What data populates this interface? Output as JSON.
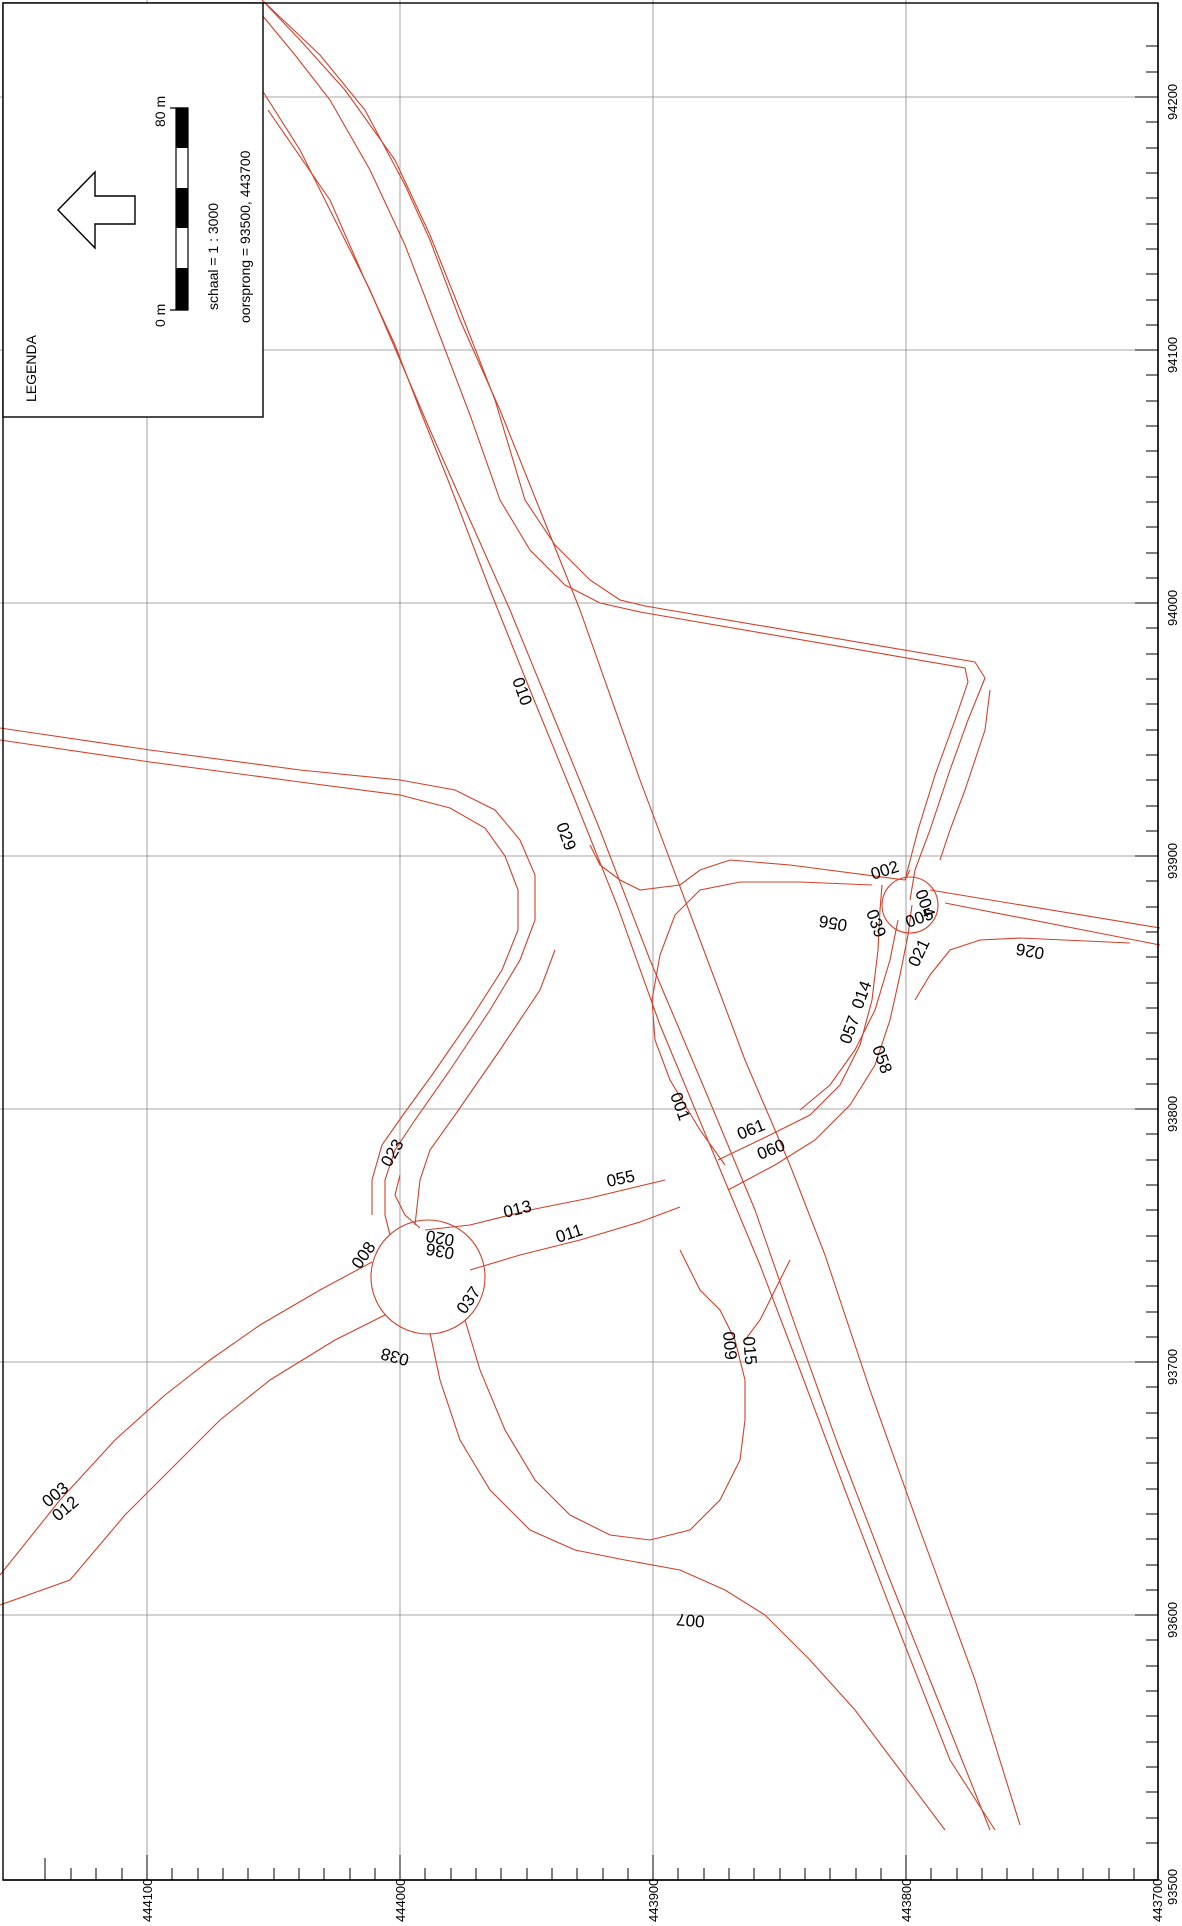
{
  "legend": {
    "title": "LEGENDA",
    "scale_start": "0 m",
    "scale_end": "80 m",
    "scale_text": "schaal = 1 : 3000",
    "origin_text": "oorsprong = 93500, 443700",
    "north_arrow_icon": "arrow-icon"
  },
  "axes": {
    "bottom_ticks": [
      "444100",
      "444000",
      "443900",
      "443800",
      "443700"
    ],
    "right_ticks": [
      "94200",
      "94100",
      "94000",
      "93900",
      "93800",
      "93700",
      "93600",
      "93500"
    ]
  },
  "road_labels": [
    "010",
    "029",
    "002",
    "004",
    "005",
    "039",
    "056",
    "021",
    "026",
    "014",
    "057",
    "058",
    "061",
    "060",
    "001",
    "055",
    "013",
    "011",
    "023",
    "008",
    "036",
    "020",
    "037",
    "038",
    "009",
    "015",
    "007",
    "003",
    "012"
  ],
  "colors": {
    "road": "#d2402a",
    "grid": "#8a8a8a",
    "frame": "#000000"
  }
}
